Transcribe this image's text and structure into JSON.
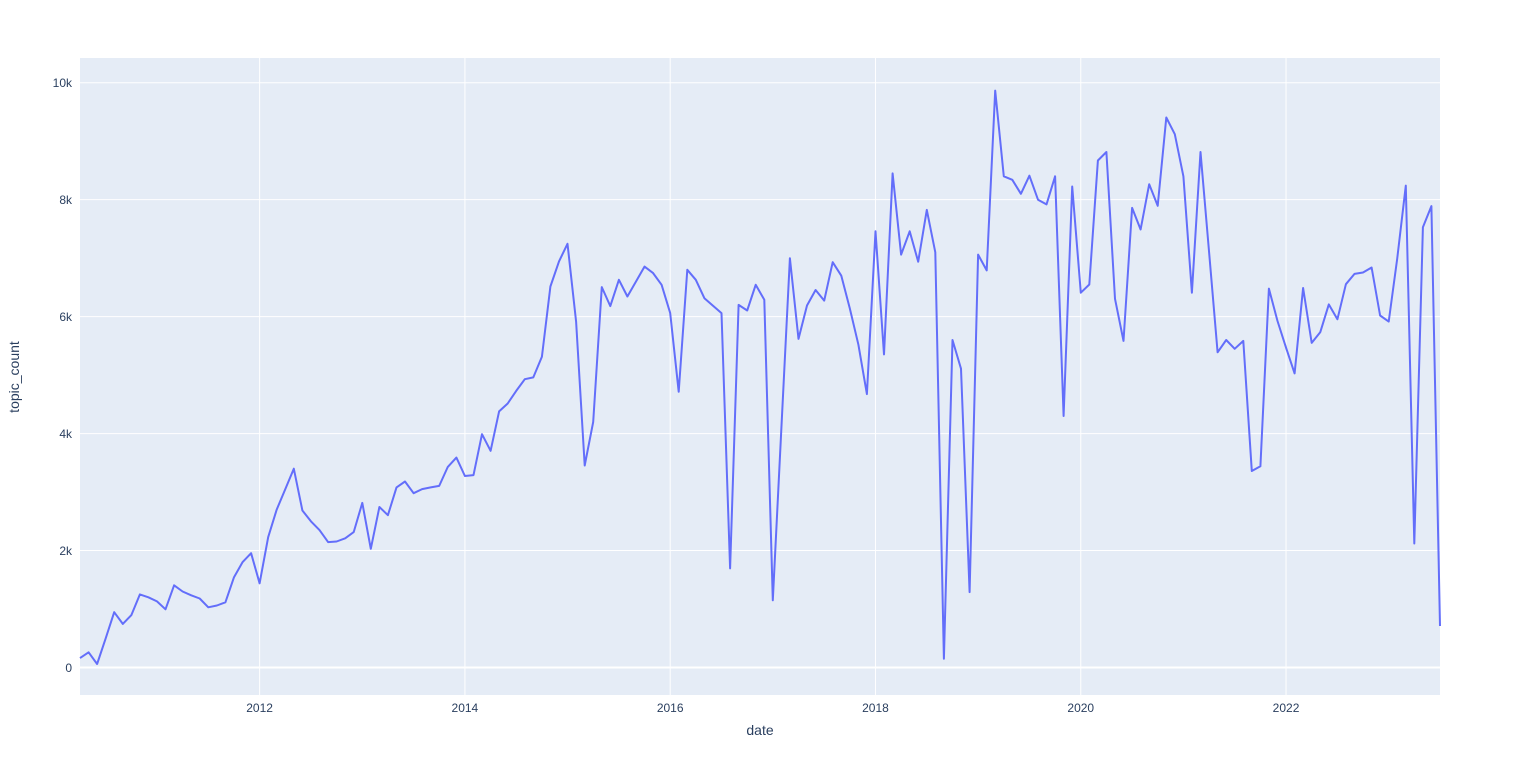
{
  "figure": {
    "xaxis_title": "date",
    "yaxis_title": "topic_count"
  },
  "colors": {
    "line": "#636efa",
    "plot_background": "#e5ecf6",
    "gridline": "#ffffff",
    "text": "#2a3f5f",
    "paper_background": "#ffffff"
  },
  "chart_data": {
    "type": "line",
    "title": "",
    "xlabel": "date",
    "ylabel": "topic_count",
    "legend": "none",
    "grid": "on",
    "ylim": [
      -470,
      10420
    ],
    "yticks": [
      {
        "value": 0,
        "label": "0"
      },
      {
        "value": 2000,
        "label": "2k"
      },
      {
        "value": 4000,
        "label": "4k"
      },
      {
        "value": 6000,
        "label": "6k"
      },
      {
        "value": 8000,
        "label": "8k"
      },
      {
        "value": 10000,
        "label": "10k"
      }
    ],
    "xticks": [
      {
        "month_index": 21,
        "label": "2012"
      },
      {
        "month_index": 45,
        "label": "2014"
      },
      {
        "month_index": 69,
        "label": "2016"
      },
      {
        "month_index": 93,
        "label": "2018"
      },
      {
        "month_index": 117,
        "label": "2020"
      },
      {
        "month_index": 141,
        "label": "2022"
      }
    ],
    "x": [
      "2010-04",
      "2010-05",
      "2010-06",
      "2010-07",
      "2010-08",
      "2010-09",
      "2010-10",
      "2010-11",
      "2010-12",
      "2011-01",
      "2011-02",
      "2011-03",
      "2011-04",
      "2011-05",
      "2011-06",
      "2011-07",
      "2011-08",
      "2011-09",
      "2011-10",
      "2011-11",
      "2011-12",
      "2012-01",
      "2012-02",
      "2012-03",
      "2012-04",
      "2012-05",
      "2012-06",
      "2012-07",
      "2012-08",
      "2012-09",
      "2012-10",
      "2012-11",
      "2012-12",
      "2013-01",
      "2013-02",
      "2013-03",
      "2013-04",
      "2013-05",
      "2013-06",
      "2013-07",
      "2013-08",
      "2013-09",
      "2013-10",
      "2013-11",
      "2013-12",
      "2014-01",
      "2014-02",
      "2014-03",
      "2014-04",
      "2014-05",
      "2014-06",
      "2014-07",
      "2014-08",
      "2014-09",
      "2014-10",
      "2014-11",
      "2014-12",
      "2015-01",
      "2015-02",
      "2015-03",
      "2015-04",
      "2015-05",
      "2015-06",
      "2015-07",
      "2015-08",
      "2015-09",
      "2015-10",
      "2015-11",
      "2015-12",
      "2016-01",
      "2016-02",
      "2016-03",
      "2016-04",
      "2016-05",
      "2016-06",
      "2016-07",
      "2016-08",
      "2016-09",
      "2016-10",
      "2016-11",
      "2016-12",
      "2017-01",
      "2017-02",
      "2017-03",
      "2017-04",
      "2017-05",
      "2017-06",
      "2017-07",
      "2017-08",
      "2017-09",
      "2017-10",
      "2017-11",
      "2017-12",
      "2018-01",
      "2018-02",
      "2018-03",
      "2018-04",
      "2018-05",
      "2018-06",
      "2018-07",
      "2018-08",
      "2018-09",
      "2018-10",
      "2018-11",
      "2018-12",
      "2019-01",
      "2019-02",
      "2019-03",
      "2019-04",
      "2019-05",
      "2019-06",
      "2019-07",
      "2019-08",
      "2019-09",
      "2019-10",
      "2019-11",
      "2019-12",
      "2020-01",
      "2020-02",
      "2020-03",
      "2020-04",
      "2020-05",
      "2020-06",
      "2020-07",
      "2020-08",
      "2020-09",
      "2020-10",
      "2020-11",
      "2020-12",
      "2021-01",
      "2021-02",
      "2021-03",
      "2021-04",
      "2021-05",
      "2021-06",
      "2021-07",
      "2021-08",
      "2021-09",
      "2021-10",
      "2021-11",
      "2021-12",
      "2022-01",
      "2022-02",
      "2022-03",
      "2022-04",
      "2022-05",
      "2022-06",
      "2022-07",
      "2022-08",
      "2022-09",
      "2022-10",
      "2022-11",
      "2022-12",
      "2023-01",
      "2023-02",
      "2023-03",
      "2023-04",
      "2023-05",
      "2023-06",
      "2023-07"
    ],
    "values": [
      160,
      260,
      60,
      500,
      945,
      745,
      895,
      1250,
      1200,
      1130,
      995,
      1405,
      1300,
      1235,
      1180,
      1030,
      1060,
      1115,
      1545,
      1800,
      1955,
      1440,
      2230,
      2700,
      3050,
      3400,
      2685,
      2500,
      2350,
      2145,
      2155,
      2210,
      2315,
      2815,
      2030,
      2745,
      2605,
      3080,
      3180,
      2980,
      3050,
      3080,
      3105,
      3430,
      3590,
      3275,
      3290,
      3990,
      3705,
      4380,
      4515,
      4730,
      4930,
      4960,
      5315,
      6515,
      6945,
      7245,
      5915,
      3455,
      4200,
      6505,
      6180,
      6630,
      6345,
      6600,
      6855,
      6745,
      6545,
      6060,
      4715,
      6800,
      6630,
      6315,
      6185,
      6060,
      1695,
      6200,
      6105,
      6545,
      6290,
      1150,
      4100,
      7000,
      5620,
      6190,
      6455,
      6275,
      6930,
      6700,
      6140,
      5520,
      4675,
      7460,
      5355,
      8450,
      7060,
      7460,
      6940,
      7825,
      7100,
      150,
      5600,
      5110,
      1290,
      7060,
      6790,
      9865,
      8400,
      8340,
      8100,
      8410,
      8000,
      7920,
      8400,
      4300,
      8225,
      6410,
      6550,
      8670,
      8815,
      6305,
      5585,
      7860,
      7490,
      8265,
      7895,
      9405,
      9120,
      8400,
      6410,
      8815,
      7100,
      5390,
      5600,
      5450,
      5585,
      3360,
      3440,
      6480,
      5925,
      5470,
      5030,
      6490,
      5550,
      5735,
      6210,
      5955,
      6555,
      6730,
      6755,
      6840,
      6020,
      5915,
      6990,
      8240,
      2120,
      7530,
      7890,
      710
    ]
  }
}
